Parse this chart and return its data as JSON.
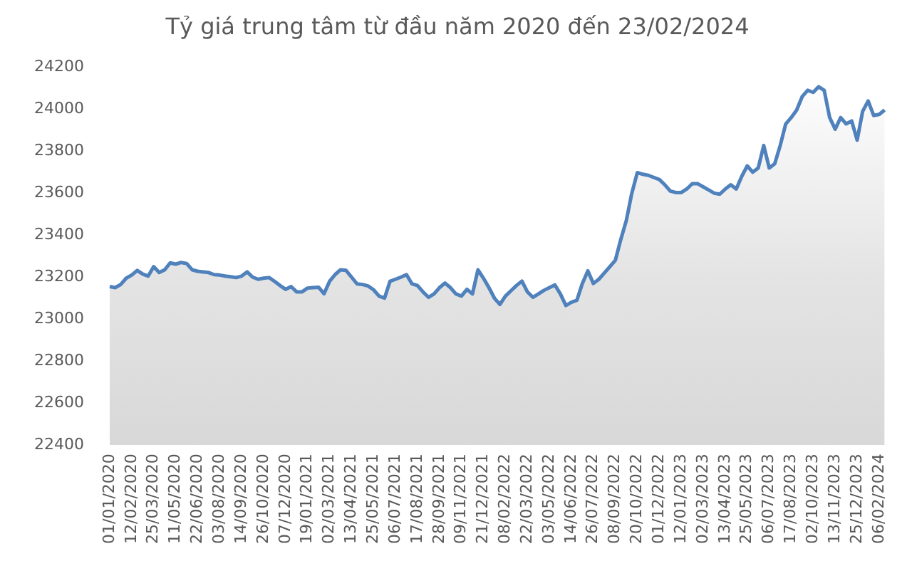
{
  "chart_data": {
    "type": "area",
    "title": "Tỷ giá trung tâm từ đầu năm 2020 đến 23/02/2024",
    "categories": [
      "01/01/2020",
      null,
      null,
      null,
      "12/02/2020",
      null,
      null,
      null,
      "25/03/2020",
      null,
      null,
      null,
      "11/05/2020",
      null,
      null,
      null,
      "22/06/2020",
      null,
      null,
      null,
      "03/08/2020",
      null,
      null,
      null,
      "14/09/2020",
      null,
      null,
      null,
      "26/10/2020",
      null,
      null,
      null,
      "07/12/2020",
      null,
      null,
      null,
      "19/01/2021",
      null,
      null,
      null,
      "02/03/2021",
      null,
      null,
      null,
      "13/04/2021",
      null,
      null,
      null,
      "25/05/2021",
      null,
      null,
      null,
      "06/07/2021",
      null,
      null,
      null,
      "17/08/2021",
      null,
      null,
      null,
      "28/09/2021",
      null,
      null,
      null,
      "09/11/2021",
      null,
      null,
      null,
      "21/12/2021",
      null,
      null,
      null,
      "08/02/2022",
      null,
      null,
      null,
      "22/03/2022",
      null,
      null,
      null,
      "03/05/2022",
      null,
      null,
      null,
      "14/06/2022",
      null,
      null,
      null,
      "26/07/2022",
      null,
      null,
      null,
      "08/09/2022",
      null,
      null,
      null,
      "20/10/2022",
      null,
      null,
      null,
      "01/12/2022",
      null,
      null,
      null,
      "12/01/2023",
      null,
      null,
      null,
      "02/03/2023",
      null,
      null,
      null,
      "13/04/2023",
      null,
      null,
      null,
      "25/05/2023",
      null,
      null,
      null,
      "06/07/2023",
      null,
      null,
      null,
      "17/08/2023",
      null,
      null,
      null,
      "02/10/2023",
      null,
      null,
      null,
      "13/11/2023",
      null,
      null,
      null,
      "25/12/2023",
      null,
      null,
      null,
      "06/02/2024",
      null
    ],
    "series": [
      {
        "color": "#4f81bd",
        "values": [
          23155,
          23150,
          23165,
          23195,
          23210,
          23232,
          23215,
          23205,
          23250,
          23222,
          23235,
          23268,
          23262,
          23270,
          23265,
          23235,
          23228,
          23225,
          23222,
          23212,
          23210,
          23205,
          23202,
          23198,
          23205,
          23225,
          23200,
          23190,
          23195,
          23198,
          23180,
          23160,
          23142,
          23155,
          23130,
          23130,
          23148,
          23150,
          23152,
          23121,
          23180,
          23212,
          23235,
          23232,
          23200,
          23168,
          23165,
          23158,
          23140,
          23110,
          23100,
          23180,
          23190,
          23200,
          23212,
          23168,
          23160,
          23130,
          23104,
          23120,
          23150,
          23172,
          23150,
          23120,
          23110,
          23142,
          23120,
          23235,
          23195,
          23150,
          23100,
          23070,
          23110,
          23135,
          23160,
          23181,
          23130,
          23104,
          23120,
          23137,
          23150,
          23163,
          23120,
          23065,
          23080,
          23090,
          23170,
          23230,
          23170,
          23190,
          23220,
          23250,
          23280,
          23380,
          23470,
          23600,
          23698,
          23690,
          23685,
          23675,
          23665,
          23640,
          23610,
          23603,
          23603,
          23620,
          23645,
          23645,
          23630,
          23615,
          23600,
          23595,
          23620,
          23640,
          23620,
          23680,
          23730,
          23700,
          23720,
          23827,
          23720,
          23740,
          23827,
          23930,
          23960,
          23996,
          24060,
          24090,
          24080,
          24107,
          24090,
          23960,
          23905,
          23960,
          23930,
          23944,
          23853,
          23990,
          24039,
          23970,
          23975,
          23996
        ]
      }
    ],
    "ylim": [
      22400,
      24200
    ],
    "yticks": [
      22400,
      22600,
      22800,
      23000,
      23200,
      23400,
      23600,
      23800,
      24000,
      24200
    ],
    "grid": false,
    "legend": false
  }
}
